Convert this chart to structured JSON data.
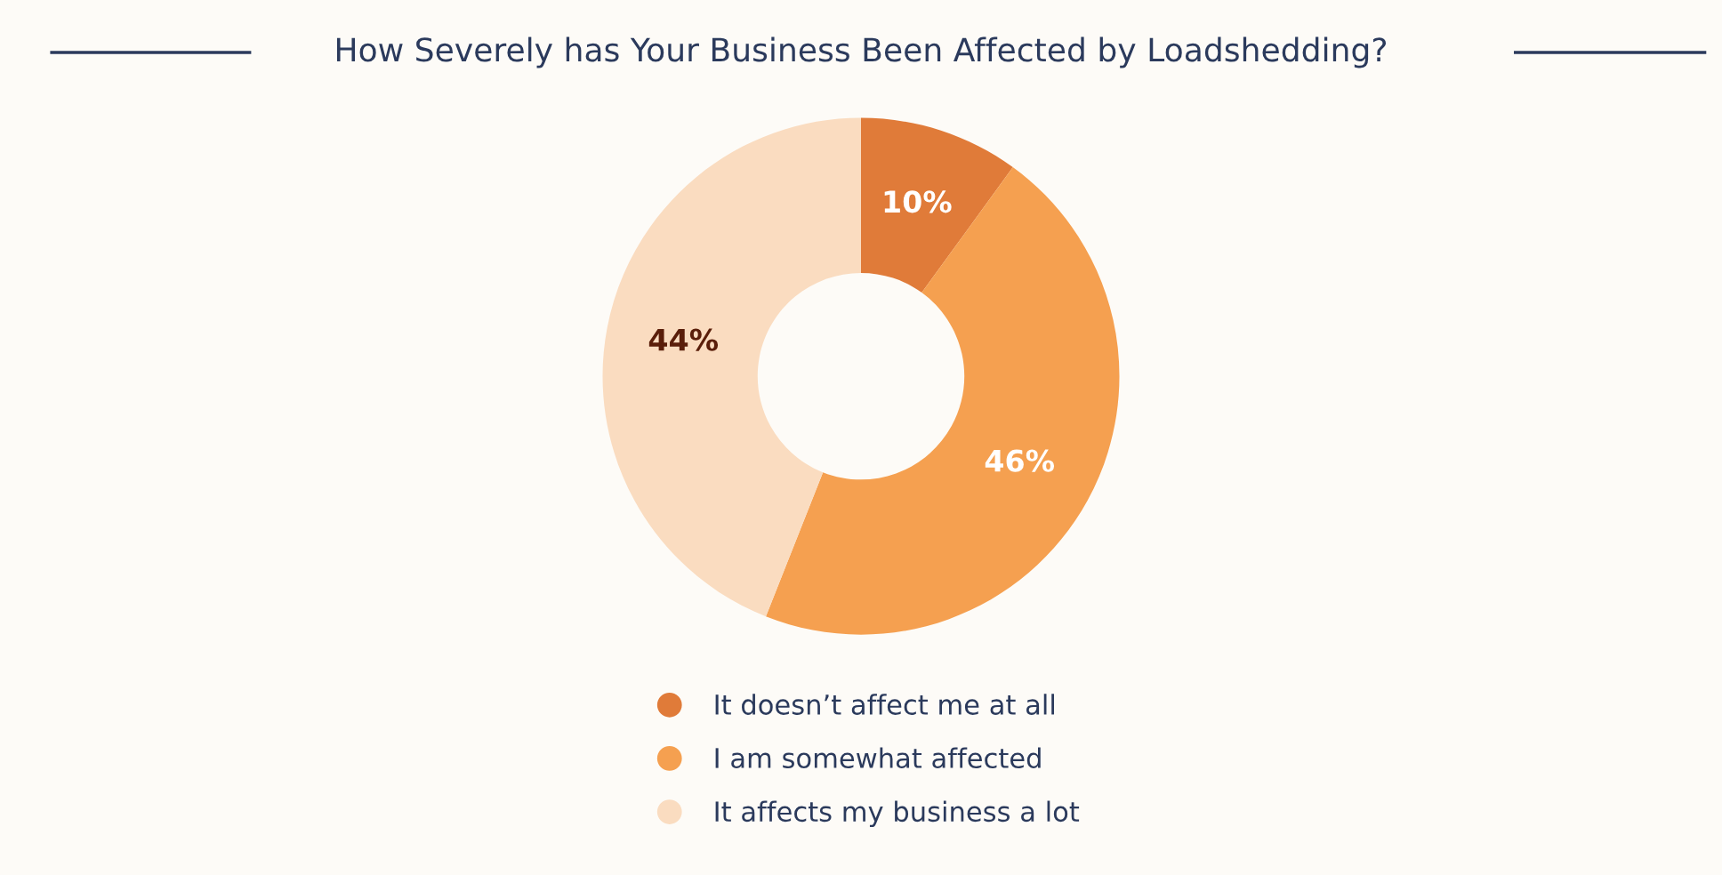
{
  "chart_data": {
    "type": "donut",
    "title": "How Severely has Your Business Been Affected by Loadshedding?",
    "categories": [
      "It doesn’t affect me at all",
      "I am somewhat affected",
      "It affects my business a lot"
    ],
    "values": [
      10,
      46,
      44
    ],
    "colors": [
      "#e07b39",
      "#f5a050",
      "#fadcc0"
    ],
    "value_labels": [
      "10%",
      "46%",
      "44%"
    ],
    "legend": "bottom"
  }
}
